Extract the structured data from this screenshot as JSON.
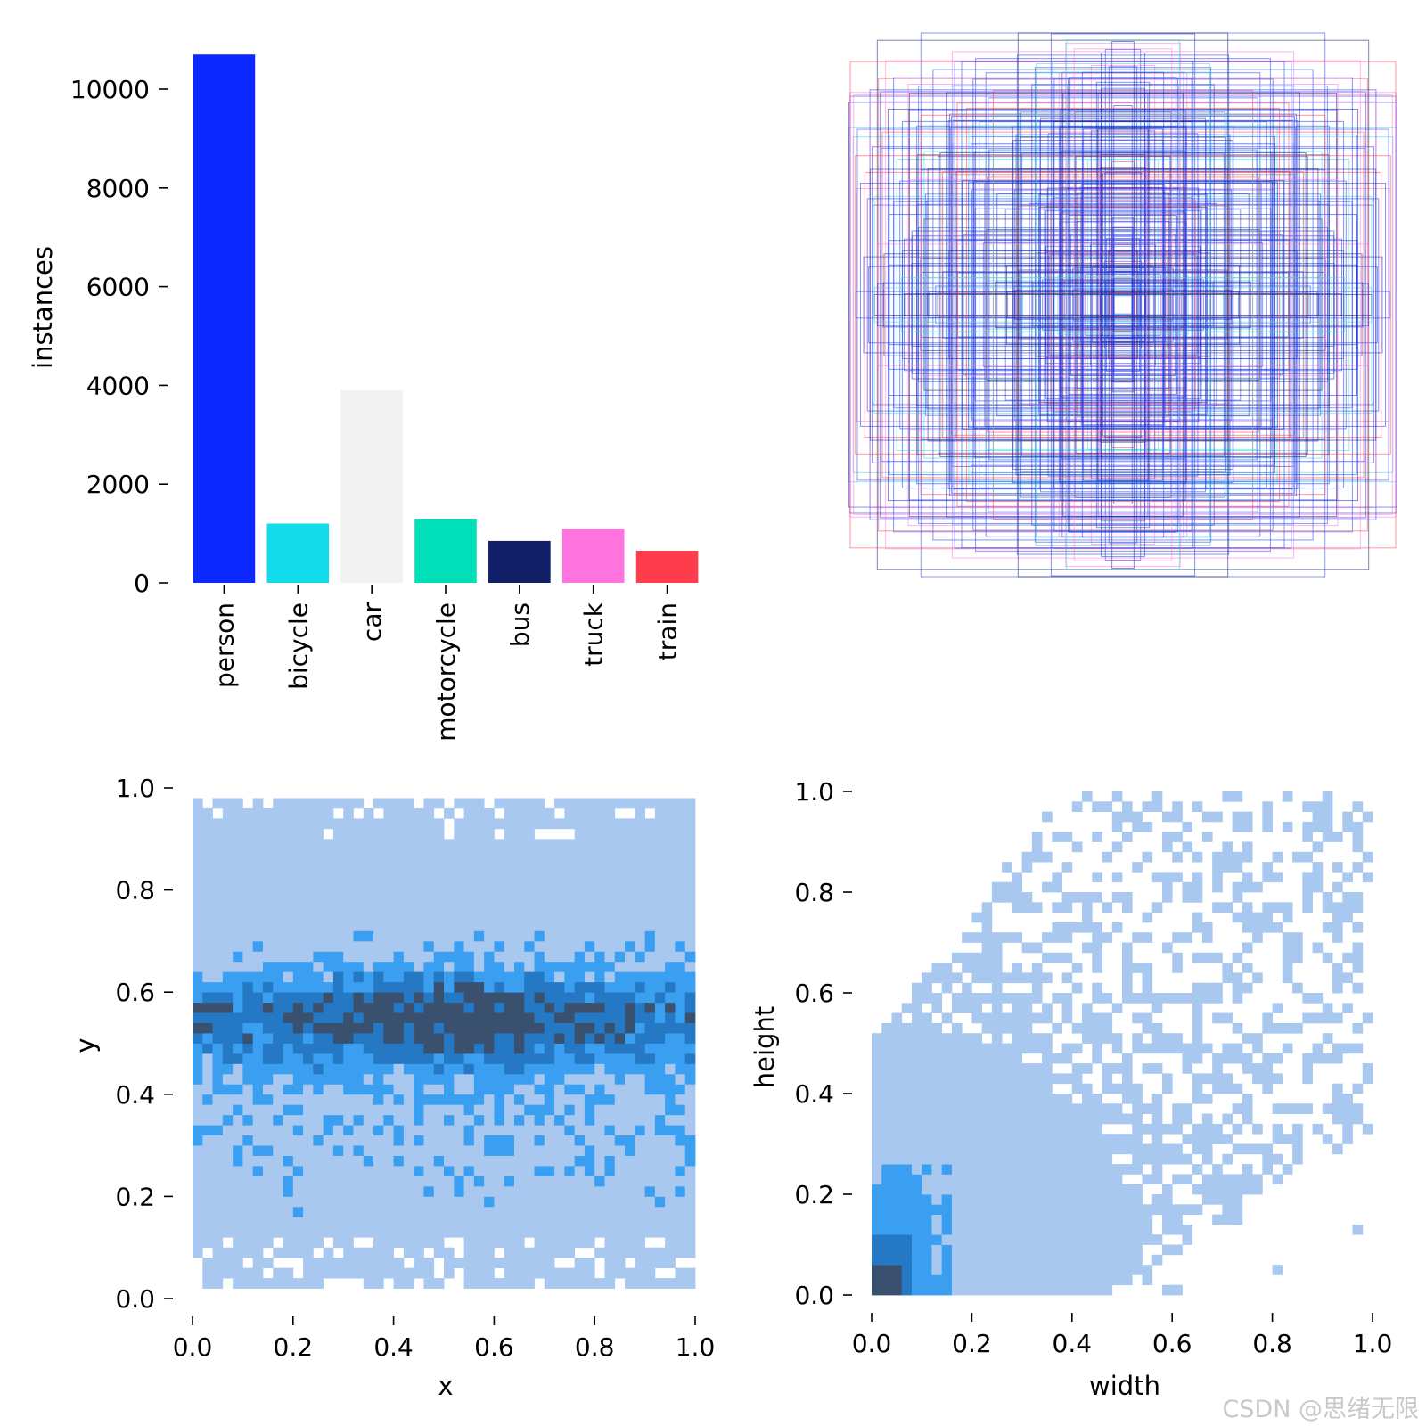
{
  "chart_data": [
    {
      "type": "bar",
      "ylabel": "instances",
      "categories": [
        "person",
        "bicycle",
        "car",
        "motorcycle",
        "bus",
        "truck",
        "train"
      ],
      "values": [
        10700,
        1200,
        3900,
        1300,
        850,
        1100,
        650
      ],
      "colors": [
        "#0b28ff",
        "#12dbec",
        "#f2f2f2",
        "#00dfb7",
        "#111f68",
        "#ff74df",
        "#ff3c4b"
      ],
      "ylim": [
        0,
        11000
      ],
      "yticks": [
        "0",
        "2000",
        "4000",
        "6000",
        "8000",
        "10000"
      ]
    },
    {
      "type": "other",
      "description_kind": "overlay of label bounding boxes centered on the image",
      "stroke_color": "#1c3be8"
    },
    {
      "type": "heatmap",
      "xlabel": "x",
      "ylabel": "y",
      "xlim": [
        0,
        1
      ],
      "ylim": [
        0,
        1
      ],
      "xticks": [
        "0.0",
        "0.2",
        "0.4",
        "0.6",
        "0.8",
        "1.0"
      ],
      "yticks": [
        "0.0",
        "0.2",
        "0.4",
        "0.6",
        "0.8",
        "1.0"
      ],
      "bins": 50,
      "density_peak": [
        0.5,
        0.55
      ],
      "colors": [
        "#a9c8f0",
        "#3a9ff1",
        "#2478c4",
        "#39516f"
      ]
    },
    {
      "type": "heatmap",
      "xlabel": "width",
      "ylabel": "height",
      "xlim": [
        0,
        1
      ],
      "ylim": [
        0,
        1
      ],
      "xticks": [
        "0.0",
        "0.2",
        "0.4",
        "0.6",
        "0.8",
        "1.0"
      ],
      "yticks": [
        "0.0",
        "0.2",
        "0.4",
        "0.6",
        "0.8",
        "1.0"
      ],
      "bins": 50,
      "density_peak": [
        0.01,
        0.02
      ],
      "colors": [
        "#a9c8f0",
        "#3a9ff1",
        "#2478c4",
        "#39516f"
      ]
    }
  ],
  "watermark": "CSDN @思绪无限"
}
